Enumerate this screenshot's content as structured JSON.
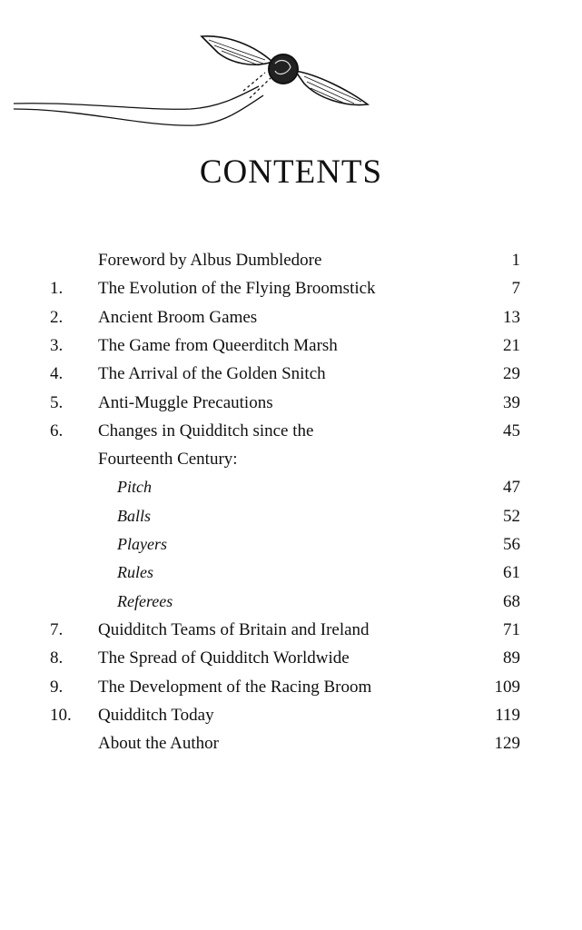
{
  "title": "CONTENTS",
  "entries": [
    {
      "num": "",
      "label": "Foreword by Albus Dumbledore",
      "page": "1",
      "sub": false
    },
    {
      "num": "1.",
      "label": "The Evolution of the Flying Broomstick",
      "page": "7",
      "sub": false
    },
    {
      "num": "2.",
      "label": "Ancient Broom Games",
      "page": "13",
      "sub": false
    },
    {
      "num": "3.",
      "label": "The Game from Queerditch Marsh",
      "page": "21",
      "sub": false
    },
    {
      "num": "4.",
      "label": "The Arrival of the Golden Snitch",
      "page": "29",
      "sub": false
    },
    {
      "num": "5.",
      "label": "Anti-Muggle Precautions",
      "page": "39",
      "sub": false
    },
    {
      "num": "6.",
      "label": "Changes in Quidditch since the",
      "page": "45",
      "sub": false
    },
    {
      "num": "",
      "label": "Fourteenth Century:",
      "page": "",
      "sub": false
    },
    {
      "num": "",
      "label": "Pitch",
      "page": "47",
      "sub": true
    },
    {
      "num": "",
      "label": "Balls",
      "page": "52",
      "sub": true
    },
    {
      "num": "",
      "label": "Players",
      "page": "56",
      "sub": true
    },
    {
      "num": "",
      "label": "Rules",
      "page": "61",
      "sub": true
    },
    {
      "num": "",
      "label": "Referees",
      "page": "68",
      "sub": true
    },
    {
      "num": "7.",
      "label": "Quidditch Teams of Britain and Ireland",
      "page": "71",
      "sub": false
    },
    {
      "num": "8.",
      "label": "The Spread of Quidditch Worldwide",
      "page": "89",
      "sub": false
    },
    {
      "num": "9.",
      "label": "The Development of the Racing Broom",
      "page": "109",
      "sub": false
    },
    {
      "num": "10.",
      "label": "Quidditch Today",
      "page": "119",
      "sub": false
    },
    {
      "num": "",
      "label": "About the Author",
      "page": "129",
      "sub": false
    }
  ]
}
